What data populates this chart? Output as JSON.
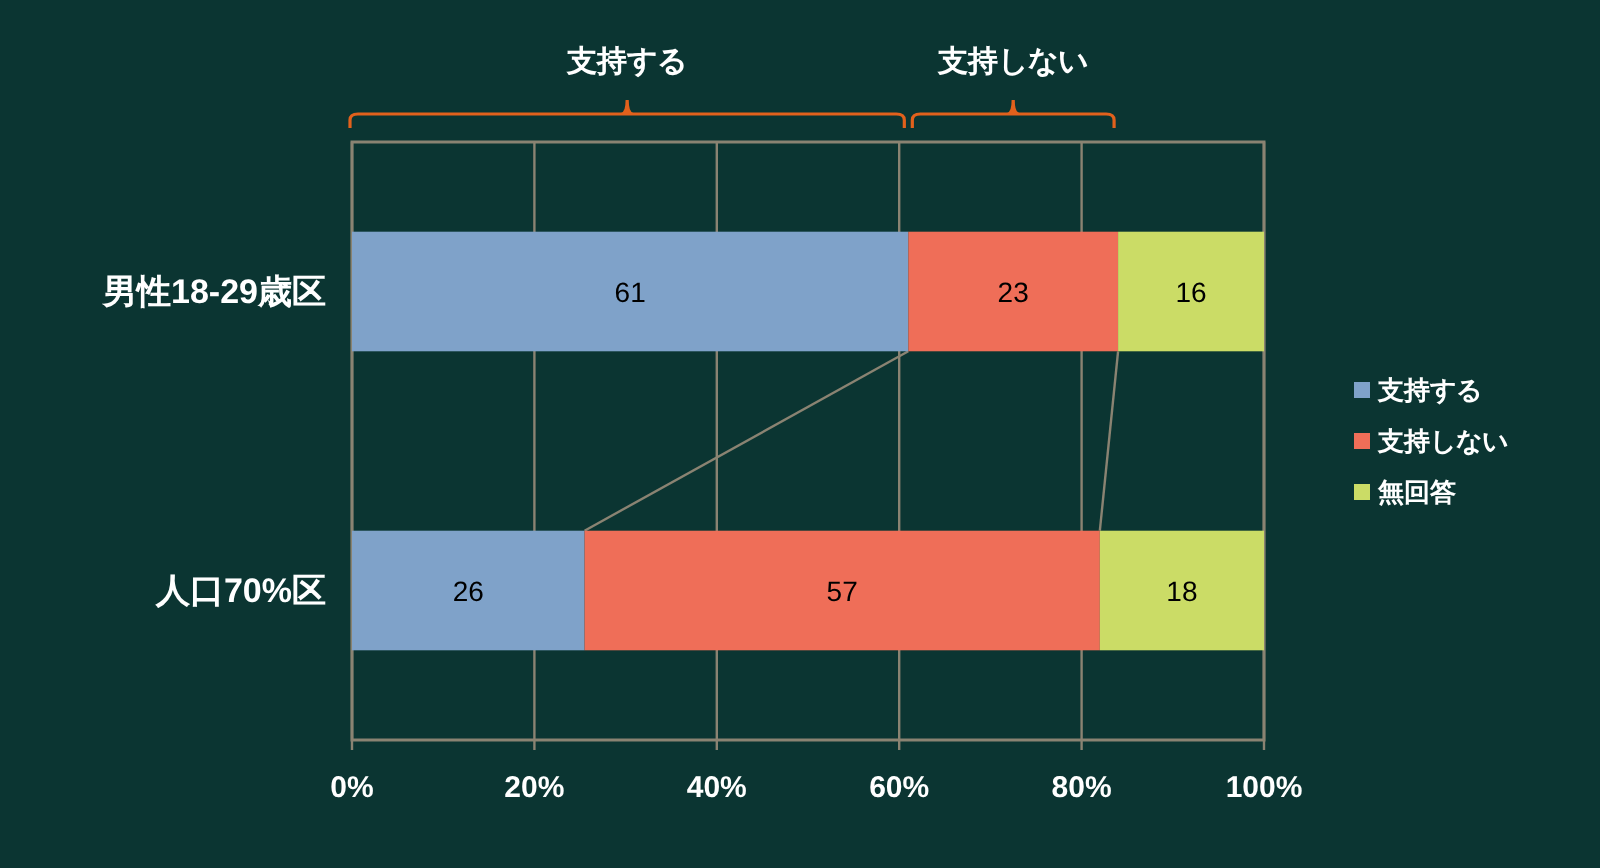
{
  "chart_data": {
    "type": "bar",
    "orientation": "horizontal",
    "stacked": true,
    "categories": [
      "男性18-29歳区",
      "人口70%区"
    ],
    "series": [
      {
        "name": "支持する",
        "color": "#7fa2c9",
        "values": [
          61,
          25.5
        ],
        "value_labels": [
          "61",
          "26"
        ]
      },
      {
        "name": "支持しない",
        "color": "#ef6e58",
        "values": [
          23,
          56.5
        ],
        "value_labels": [
          "23",
          "57"
        ]
      },
      {
        "name": "無回答",
        "color": "#cbdc66",
        "values": [
          16,
          18
        ],
        "value_labels": [
          "16",
          "18"
        ]
      }
    ],
    "xlim": [
      0,
      100
    ],
    "xticks": [
      {
        "value": 0,
        "label": "0%"
      },
      {
        "value": 20,
        "label": "20%"
      },
      {
        "value": 40,
        "label": "40%"
      },
      {
        "value": 60,
        "label": "60%"
      },
      {
        "value": 80,
        "label": "80%"
      },
      {
        "value": 100,
        "label": "100%"
      }
    ],
    "grid": "x",
    "legend": "right",
    "annotations": [
      "支持する",
      "支持しない"
    ]
  }
}
